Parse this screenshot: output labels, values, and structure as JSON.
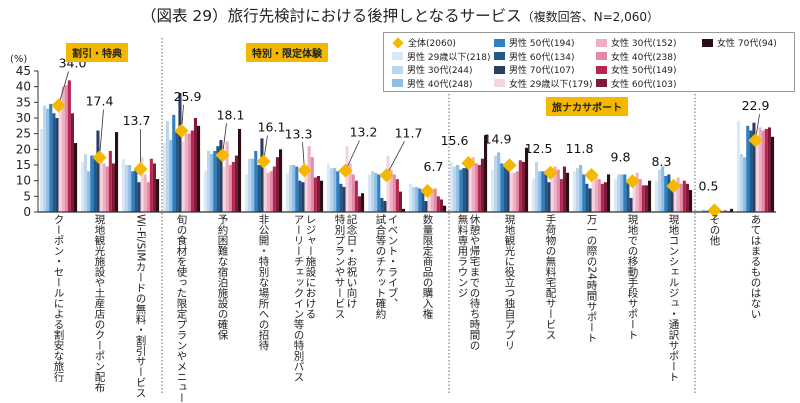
{
  "chart_data": {
    "type": "bar",
    "title": "（図表 29）旅行先検討における後押しとなるサービス",
    "subtitle": "（複数回答、N=2,060）",
    "ylabel": "(%)",
    "ylim": [
      0,
      45
    ],
    "yticks": [
      0,
      5,
      10,
      15,
      20,
      25,
      30,
      35,
      40,
      45
    ],
    "groups": [
      {
        "label": "割引・特典",
        "start": 0,
        "end": 2
      },
      {
        "label": "特別・限定体験",
        "start": 3,
        "end": 9
      },
      {
        "label": "旅ナカサポート",
        "start": 10,
        "end": 15
      }
    ],
    "categories": [
      "クーポン・セールによる割安な旅行",
      "現地観光施設や土産店のクーポン配布",
      "Wi-Fi/SIMカードの無料・割引サービス",
      "旬の食材を使った限定プランやメニュー",
      "予約困難な宿泊施設の確保",
      "非公開・特別な場所への招待",
      "レジャー施設における アーリーチェックイン等の特別パス",
      "記念日・お祝い向け 特別プランやサービス",
      "イベント・ライブ、 試合等のチケット確約",
      "数量限定商品の購入権",
      "休憩や帰宅までの待ち時間の 無料専用ラウンジ",
      "現地観光に役立つ独自アプリ",
      "手荷物の無料宅配サービス",
      "万一の際の24時間サポート",
      "現地での移動手段サポート",
      "現地コンシェルジュ・通訳サポート",
      "その他",
      "あてはまるものはない"
    ],
    "total": {
      "name": "全体(2060)",
      "color": "#f5b800",
      "values": [
        34.0,
        17.4,
        13.7,
        25.9,
        18.1,
        16.1,
        13.3,
        13.2,
        11.7,
        6.7,
        15.6,
        14.9,
        12.5,
        11.8,
        9.8,
        8.3,
        0.5,
        22.9
      ]
    },
    "series": [
      {
        "name": "男性 29歳以下(218)",
        "color": "#dbe9f6",
        "values": [
          26.5,
          16.0,
          17.0,
          22.0,
          13.0,
          12.0,
          12.5,
          15.5,
          12.0,
          9.0,
          16.0,
          13.5,
          10.5,
          13.0,
          10.5,
          10.0,
          0.6,
          29.0
        ]
      },
      {
        "name": "男性 30代(244)",
        "color": "#bcd6ee",
        "values": [
          34.0,
          18.5,
          15.0,
          29.0,
          19.5,
          17.0,
          15.0,
          14.0,
          13.0,
          8.0,
          14.5,
          18.0,
          16.0,
          14.0,
          12.0,
          13.5,
          0.4,
          18.5
        ]
      },
      {
        "name": "男性 40代(248)",
        "color": "#8fbde4",
        "values": [
          33.0,
          13.0,
          15.0,
          23.0,
          18.5,
          17.0,
          15.0,
          14.0,
          12.5,
          8.0,
          15.0,
          19.0,
          13.0,
          15.0,
          12.0,
          14.5,
          0.7,
          17.5
        ]
      },
      {
        "name": "男性 50代(194)",
        "color": "#2f7fc1",
        "values": [
          34.5,
          18.0,
          13.0,
          31.0,
          19.5,
          19.5,
          14.5,
          13.0,
          12.0,
          7.5,
          13.5,
          15.5,
          13.0,
          12.0,
          12.0,
          11.5,
          0.4,
          27.5
        ]
      },
      {
        "name": "男性 60代(134)",
        "color": "#1f5a8c",
        "values": [
          31.5,
          18.0,
          13.5,
          26.0,
          21.0,
          15.0,
          10.0,
          9.0,
          4.5,
          7.0,
          14.0,
          15.0,
          13.0,
          9.0,
          10.0,
          12.0,
          0.3,
          26.0
        ]
      },
      {
        "name": "男性 70代(107)",
        "color": "#2b3f63",
        "values": [
          30.0,
          26.0,
          9.5,
          38.0,
          23.0,
          23.5,
          9.5,
          8.0,
          3.5,
          3.5,
          15.0,
          15.0,
          9.5,
          7.5,
          4.5,
          8.0,
          0.2,
          28.5
        ]
      },
      {
        "name": "女性 29歳以下(179)",
        "color": "#f6d5e1",
        "values": [
          32.5,
          16.0,
          17.5,
          22.5,
          14.5,
          14.0,
          13.0,
          21.0,
          18.0,
          6.5,
          17.0,
          12.5,
          13.0,
          11.5,
          11.0,
          9.5,
          0.5,
          23.0
        ]
      },
      {
        "name": "女性 30代(152)",
        "color": "#efb0c6",
        "values": [
          40.0,
          15.5,
          12.0,
          25.0,
          22.5,
          12.5,
          21.0,
          15.5,
          13.5,
          7.0,
          17.5,
          12.5,
          14.5,
          12.0,
          12.5,
          11.0,
          0.6,
          27.0
        ]
      },
      {
        "name": "女性 40代(238)",
        "color": "#e38aa8",
        "values": [
          40.5,
          14.5,
          9.5,
          25.0,
          15.0,
          13.0,
          17.5,
          12.0,
          12.0,
          7.5,
          15.5,
          13.0,
          13.5,
          10.5,
          10.5,
          9.0,
          0.4,
          26.0
        ]
      },
      {
        "name": "女性 50代(149)",
        "color": "#b52650",
        "values": [
          42.0,
          19.5,
          17.0,
          26.0,
          16.0,
          14.5,
          11.0,
          10.0,
          10.5,
          5.0,
          15.0,
          16.5,
          10.5,
          9.0,
          8.5,
          10.0,
          0.5,
          26.5
        ]
      },
      {
        "name": "女性 60代(103)",
        "color": "#7d1a38",
        "values": [
          31.5,
          15.5,
          15.5,
          30.0,
          18.0,
          17.5,
          11.5,
          5.0,
          6.5,
          4.0,
          17.0,
          16.0,
          14.5,
          9.5,
          8.5,
          9.0,
          0.3,
          27.0
        ]
      },
      {
        "name": "女性 70代(94)",
        "color": "#2a0f14",
        "values": [
          22.0,
          25.5,
          10.5,
          27.5,
          26.5,
          20.0,
          10.0,
          6.0,
          1.0,
          2.0,
          24.5,
          20.5,
          12.5,
          12.0,
          10.0,
          7.0,
          1.0,
          24.0
        ]
      }
    ]
  }
}
